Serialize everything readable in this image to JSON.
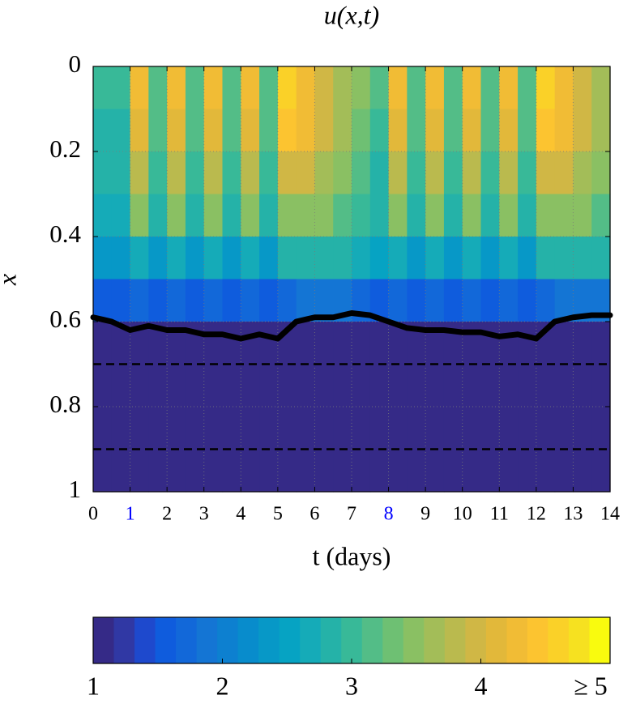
{
  "chart_data": {
    "type": "heatmap",
    "title": "u(x,t)",
    "xlabel": "t (days)",
    "ylabel": "x",
    "xlim": [
      0,
      14
    ],
    "ylim": [
      0,
      1
    ],
    "y_reversed": true,
    "xticks": [
      0,
      1,
      2,
      3,
      4,
      5,
      6,
      7,
      8,
      9,
      10,
      11,
      12,
      13,
      14
    ],
    "xtick_label_colors": [
      "#000000",
      "#0000ff",
      "#000000",
      "#000000",
      "#000000",
      "#000000",
      "#000000",
      "#000000",
      "#0000ff",
      "#000000",
      "#000000",
      "#000000",
      "#000000",
      "#000000",
      "#000000"
    ],
    "yticks": [
      0,
      0.2,
      0.4,
      0.6,
      0.8,
      1
    ],
    "grid": true,
    "x": [
      0,
      0.5,
      1,
      1.5,
      2,
      2.5,
      3,
      3.5,
      4,
      4.5,
      5,
      5.5,
      6,
      6.5,
      7,
      7.5,
      8,
      8.5,
      9,
      9.5,
      10,
      10.5,
      11,
      11.5,
      12,
      12.5,
      13,
      13.5,
      14
    ],
    "heatmap": {
      "y_edges": [
        0,
        0.1,
        0.2,
        0.3,
        0.4,
        0.5,
        0.6,
        1
      ],
      "values": [
        [
          3.0,
          3.0,
          4.3,
          3.2,
          4.3,
          3.2,
          4.3,
          3.2,
          4.3,
          3.2,
          4.6,
          4.3,
          4.0,
          3.7,
          3.4,
          3.1,
          4.3,
          3.2,
          4.3,
          3.2,
          4.3,
          3.2,
          4.3,
          3.2,
          4.6,
          4.3,
          4.0,
          3.7
        ],
        [
          2.9,
          2.9,
          4.1,
          3.1,
          4.1,
          3.1,
          4.1,
          3.1,
          4.1,
          3.1,
          4.4,
          4.2,
          3.9,
          3.6,
          3.3,
          3.0,
          4.1,
          3.1,
          4.1,
          3.1,
          4.1,
          3.1,
          4.1,
          3.1,
          4.4,
          4.2,
          3.9,
          3.6
        ],
        [
          2.8,
          2.8,
          3.8,
          3.0,
          3.8,
          3.0,
          3.8,
          3.0,
          3.8,
          3.0,
          4.0,
          3.9,
          3.7,
          3.4,
          3.2,
          2.9,
          3.8,
          3.0,
          3.8,
          3.0,
          3.8,
          3.0,
          3.8,
          3.0,
          4.0,
          3.9,
          3.7,
          3.4
        ],
        [
          2.6,
          2.6,
          3.4,
          2.8,
          3.4,
          2.8,
          3.4,
          2.8,
          3.4,
          2.8,
          3.5,
          3.5,
          3.4,
          3.2,
          3.0,
          2.8,
          3.4,
          2.8,
          3.4,
          2.8,
          3.4,
          2.8,
          3.4,
          2.8,
          3.5,
          3.5,
          3.4,
          3.2
        ],
        [
          2.3,
          2.3,
          2.7,
          2.4,
          2.7,
          2.4,
          2.7,
          2.4,
          2.7,
          2.4,
          2.8,
          2.9,
          2.9,
          2.8,
          2.6,
          2.5,
          2.7,
          2.4,
          2.7,
          2.4,
          2.7,
          2.4,
          2.7,
          2.4,
          2.8,
          2.9,
          2.9,
          2.8
        ],
        [
          1.5,
          1.5,
          1.7,
          1.5,
          1.7,
          1.5,
          1.7,
          1.5,
          1.7,
          1.5,
          1.7,
          1.8,
          1.8,
          1.8,
          1.7,
          1.6,
          1.7,
          1.5,
          1.7,
          1.5,
          1.7,
          1.5,
          1.7,
          1.5,
          1.7,
          1.8,
          1.8,
          1.8
        ],
        [
          1,
          1,
          1,
          1,
          1,
          1,
          1,
          1,
          1,
          1,
          1,
          1,
          1,
          1,
          1,
          1,
          1,
          1,
          1,
          1,
          1,
          1,
          1,
          1,
          1,
          1,
          1,
          1
        ]
      ]
    },
    "front": {
      "color": "#000000",
      "values": [
        0.59,
        0.6,
        0.62,
        0.61,
        0.62,
        0.62,
        0.63,
        0.63,
        0.64,
        0.63,
        0.64,
        0.6,
        0.59,
        0.59,
        0.58,
        0.585,
        0.6,
        0.615,
        0.62,
        0.62,
        0.625,
        0.625,
        0.635,
        0.63,
        0.64,
        0.6,
        0.59,
        0.585,
        0.585
      ]
    },
    "hlines": [
      0.7,
      0.9
    ],
    "colorbar": {
      "lim": [
        1,
        5
      ],
      "ticks": [
        1,
        2,
        3,
        4,
        {
          "value": 5,
          "label": "≥ 5"
        }
      ],
      "colors": [
        "#352a87",
        "#3038a4",
        "#1e49cd",
        "#0f5cdd",
        "#1268d9",
        "#1475d4",
        "#0d80d0",
        "#088ccc",
        "#0798c7",
        "#06a3c3",
        "#15abb8",
        "#25b2a8",
        "#38b998",
        "#53bd87",
        "#6ec073",
        "#8ac063",
        "#a3bd58",
        "#baba4e",
        "#d0b745",
        "#e2b83a",
        "#f1bc35",
        "#fcc430",
        "#fad128",
        "#f6e120",
        "#f9fb0e"
      ]
    }
  }
}
